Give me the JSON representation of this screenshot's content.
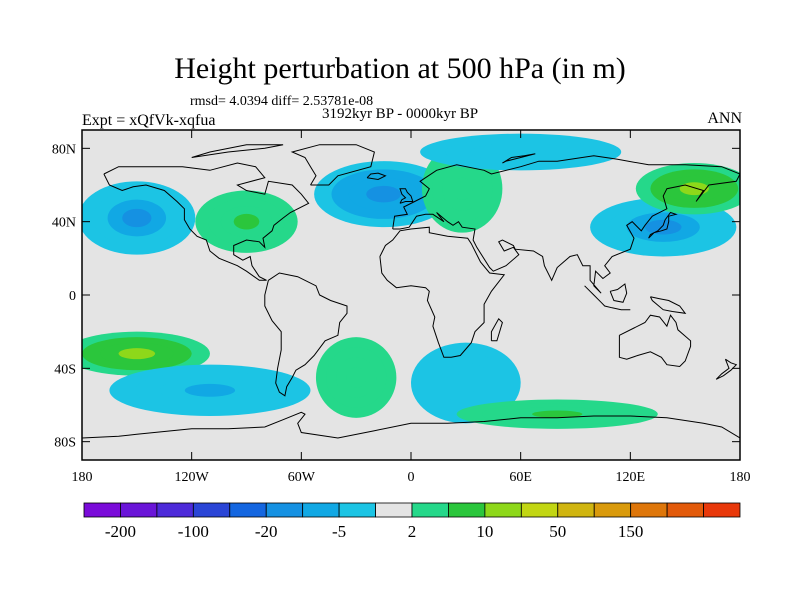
{
  "chart_data": {
    "type": "heatmap",
    "title": "Height perturbation at 500 hPa (in m)",
    "stats_text": "rmsd= 4.0394 diff= 2.53781e-08",
    "left_label": "Expt = xQfVk-xqfua",
    "center_label": "3192kyr BP - 0000kyr BP",
    "right_label": "ANN",
    "x_ticks": [
      {
        "value": -180,
        "label": "180"
      },
      {
        "value": -120,
        "label": "120W"
      },
      {
        "value": -60,
        "label": "60W"
      },
      {
        "value": 0,
        "label": "0"
      },
      {
        "value": 60,
        "label": "60E"
      },
      {
        "value": 120,
        "label": "120E"
      },
      {
        "value": 180,
        "label": "180"
      }
    ],
    "y_ticks": [
      {
        "value": 80,
        "label": "80N"
      },
      {
        "value": 40,
        "label": "40N"
      },
      {
        "value": 0,
        "label": "0"
      },
      {
        "value": -40,
        "label": "40S"
      },
      {
        "value": -80,
        "label": "80S"
      }
    ],
    "xlim": [
      -180,
      180
    ],
    "ylim": [
      -90,
      90
    ],
    "colorbar": {
      "colors": [
        "#7a0bd9",
        "#6a15d8",
        "#4d2ad9",
        "#2a45d6",
        "#1466e0",
        "#1591e2",
        "#11a8e4",
        "#1cc4e4",
        "#e4e4e4",
        "#25d88a",
        "#2bc63c",
        "#8ed81a",
        "#c2d613",
        "#d0b510",
        "#d99a0c",
        "#de760a",
        "#e25a0a",
        "#e8380a"
      ],
      "labels": [
        {
          "after_index": 0,
          "text": "-200"
        },
        {
          "after_index": 2,
          "text": "-100"
        },
        {
          "after_index": 4,
          "text": "-20"
        },
        {
          "after_index": 6,
          "text": "-5"
        },
        {
          "after_index": 8,
          "text": "2"
        },
        {
          "after_index": 10,
          "text": "10"
        },
        {
          "after_index": 12,
          "text": "50"
        },
        {
          "after_index": 14,
          "text": "150"
        }
      ]
    },
    "anomaly_centers": [
      {
        "lon": -150,
        "lat": 42,
        "value": -20,
        "rx": 32,
        "ry": 20
      },
      {
        "lon": -90,
        "lat": 40,
        "value": 15,
        "rx": 28,
        "ry": 17
      },
      {
        "lon": -15,
        "lat": 55,
        "value": -25,
        "rx": 38,
        "ry": 18
      },
      {
        "lon": 28,
        "lat": 58,
        "value": 8,
        "rx": 22,
        "ry": 24
      },
      {
        "lon": 60,
        "lat": 78,
        "value": -8,
        "rx": 55,
        "ry": 10
      },
      {
        "lon": 138,
        "lat": 37,
        "value": -20,
        "rx": 40,
        "ry": 16
      },
      {
        "lon": 155,
        "lat": 58,
        "value": 25,
        "rx": 32,
        "ry": 14
      },
      {
        "lon": -150,
        "lat": -32,
        "value": 25,
        "rx": 40,
        "ry": 12
      },
      {
        "lon": -110,
        "lat": -52,
        "value": -15,
        "rx": 55,
        "ry": 14
      },
      {
        "lon": -30,
        "lat": -45,
        "value": 10,
        "rx": 22,
        "ry": 22
      },
      {
        "lon": 30,
        "lat": -48,
        "value": -10,
        "rx": 30,
        "ry": 22
      },
      {
        "lon": 80,
        "lat": -65,
        "value": 15,
        "rx": 55,
        "ry": 8
      }
    ],
    "colorbar_note": "filled contour levels between labeled boundaries"
  }
}
